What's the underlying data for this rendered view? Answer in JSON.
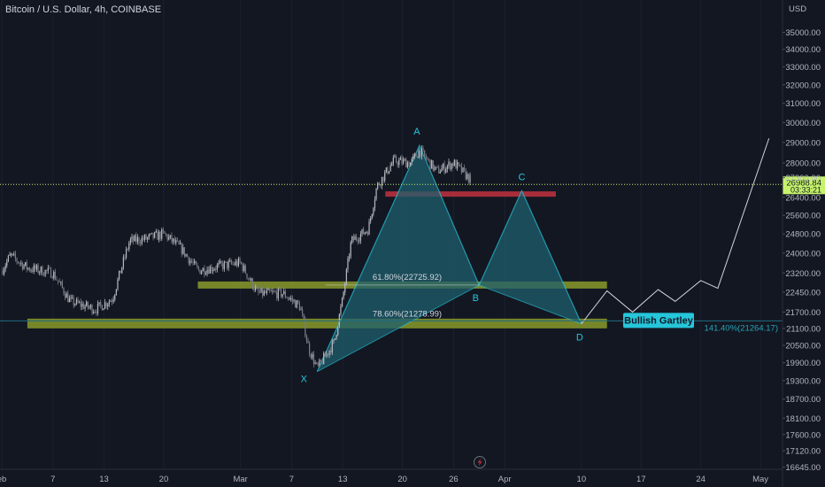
{
  "header": {
    "symbol": "Bitcoin / U.S. Dollar, 4h, COINBASE"
  },
  "price_axis": {
    "currency": "USD",
    "last_price": "26988.84",
    "countdown": "03:33:21",
    "last_price_color": "#c6f36b"
  },
  "pattern": {
    "name": "Bullish Gartley",
    "points": [
      {
        "label": "X",
        "time": "2023-03-10",
        "price": 19600
      },
      {
        "label": "A",
        "time": "2023-03-22",
        "price": 28850
      },
      {
        "label": "B",
        "time": "2023-03-29",
        "price": 22720
      },
      {
        "label": "C",
        "time": "2023-04-03",
        "price": 26700
      },
      {
        "label": "D",
        "time": "2023-04-10",
        "price": 21270
      }
    ],
    "fib_labels": [
      "61.80%(22725.92)",
      "78.60%(21278.99)"
    ],
    "extension_label": "141.40%(21264.17)",
    "fill_color": "#1f5f6e",
    "line_color": "#26c6da"
  },
  "zones": {
    "color_olive": "#8a9a2a",
    "color_red": "#c2313f"
  },
  "chart_data": {
    "type": "candlestick",
    "title": "Bitcoin / U.S. Dollar, 4h, COINBASE",
    "ylabel": "USD",
    "ylim": [
      16400,
      36400
    ],
    "y_scale": "log",
    "xlim": [
      "2023-02-01",
      "2023-05-01"
    ],
    "yticks": [
      35000,
      34000,
      33000,
      32000,
      31000,
      30000,
      29000,
      28000,
      27300,
      26400,
      25600,
      24800,
      24000,
      23200,
      22450,
      21700,
      21100,
      20500,
      19900,
      19300,
      18700,
      18100,
      17600,
      17120,
      16645
    ],
    "ytick_labels": [
      "35000.00",
      "34000.00",
      "33000.00",
      "32000.00",
      "31000.00",
      "30000.00",
      "29000.00",
      "28000.00",
      "27300.00",
      "26400.00",
      "25600.00",
      "24800.00",
      "24000.00",
      "23200.00",
      "22450.00",
      "21700.00",
      "21100.00",
      "20500.00",
      "19900.00",
      "19300.00",
      "18700.00",
      "18100.00",
      "17600.00",
      "17120.00",
      "16645.00"
    ],
    "xticks": [
      {
        "date": "2023-02-01",
        "label": "eb"
      },
      {
        "date": "2023-02-07",
        "label": "7"
      },
      {
        "date": "2023-02-13",
        "label": "13"
      },
      {
        "date": "2023-02-20",
        "label": "20"
      },
      {
        "date": "2023-03-01",
        "label": "Mar"
      },
      {
        "date": "2023-03-07",
        "label": "7"
      },
      {
        "date": "2023-03-13",
        "label": "13"
      },
      {
        "date": "2023-03-20",
        "label": "20"
      },
      {
        "date": "2023-03-26",
        "label": "26"
      },
      {
        "date": "2023-04-01",
        "label": "Apr"
      },
      {
        "date": "2023-04-10",
        "label": "10"
      },
      {
        "date": "2023-04-17",
        "label": "17"
      },
      {
        "date": "2023-04-24",
        "label": "24"
      },
      {
        "date": "2023-05-01",
        "label": "May"
      }
    ],
    "price_path": [
      {
        "date": "2023-02-01",
        "price": 23300
      },
      {
        "date": "2023-02-02",
        "price": 23900
      },
      {
        "date": "2023-02-04",
        "price": 23400
      },
      {
        "date": "2023-02-07",
        "price": 23200
      },
      {
        "date": "2023-02-09",
        "price": 22100
      },
      {
        "date": "2023-02-12",
        "price": 21800
      },
      {
        "date": "2023-02-14",
        "price": 22200
      },
      {
        "date": "2023-02-16",
        "price": 24500
      },
      {
        "date": "2023-02-18",
        "price": 24600
      },
      {
        "date": "2023-02-20",
        "price": 24800
      },
      {
        "date": "2023-02-22",
        "price": 24200
      },
      {
        "date": "2023-02-24",
        "price": 23300
      },
      {
        "date": "2023-02-27",
        "price": 23500
      },
      {
        "date": "2023-03-01",
        "price": 23600
      },
      {
        "date": "2023-03-03",
        "price": 22400
      },
      {
        "date": "2023-03-06",
        "price": 22400
      },
      {
        "date": "2023-03-08",
        "price": 21900
      },
      {
        "date": "2023-03-09",
        "price": 20400
      },
      {
        "date": "2023-03-10",
        "price": 19700
      },
      {
        "date": "2023-03-12",
        "price": 20600
      },
      {
        "date": "2023-03-13",
        "price": 22200
      },
      {
        "date": "2023-03-14",
        "price": 24500
      },
      {
        "date": "2023-03-16",
        "price": 25000
      },
      {
        "date": "2023-03-17",
        "price": 26900
      },
      {
        "date": "2023-03-19",
        "price": 28100
      },
      {
        "date": "2023-03-21",
        "price": 28000
      },
      {
        "date": "2023-03-22",
        "price": 28600
      },
      {
        "date": "2023-03-24",
        "price": 27600
      },
      {
        "date": "2023-03-26",
        "price": 28000
      },
      {
        "date": "2023-03-28",
        "price": 27200
      }
    ],
    "projection": [
      {
        "date": "2023-04-10",
        "price": 21270
      },
      {
        "date": "2023-04-13",
        "price": 22500
      },
      {
        "date": "2023-04-16",
        "price": 21700
      },
      {
        "date": "2023-04-19",
        "price": 22550
      },
      {
        "date": "2023-04-21",
        "price": 22100
      },
      {
        "date": "2023-04-24",
        "price": 22900
      },
      {
        "date": "2023-04-26",
        "price": 22600
      },
      {
        "date": "2023-05-02",
        "price": 29200
      }
    ],
    "levels": [
      {
        "name": "resistance",
        "price": 26550,
        "from": "2023-03-18",
        "to": "2023-04-07",
        "color": "#c2313f"
      },
      {
        "name": "fib-61.8",
        "price": 22725.92,
        "from": "2023-02-24",
        "to": "2023-04-13",
        "color": "#8a9a2a"
      },
      {
        "name": "fib-78.6",
        "price": 21278.99,
        "from": "2023-02-04",
        "to": "2023-04-13",
        "color": "#8a9a2a"
      }
    ],
    "current_price": 26988.84
  }
}
